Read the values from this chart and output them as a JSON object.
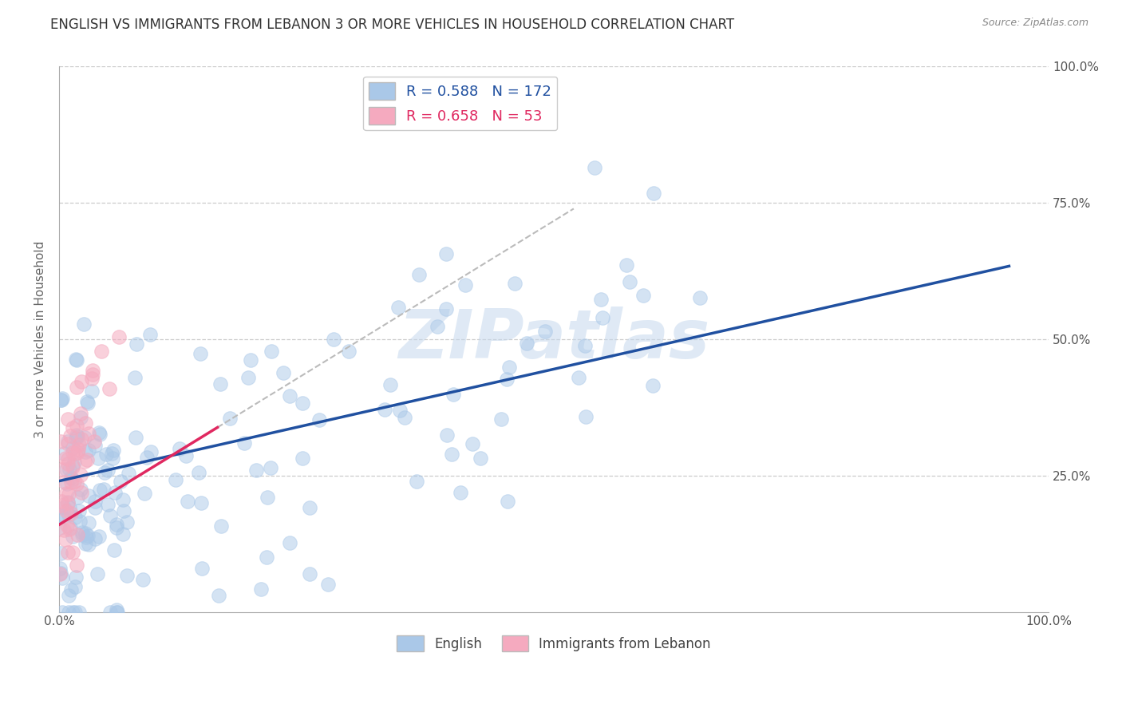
{
  "title": "ENGLISH VS IMMIGRANTS FROM LEBANON 3 OR MORE VEHICLES IN HOUSEHOLD CORRELATION CHART",
  "source": "Source: ZipAtlas.com",
  "ylabel": "3 or more Vehicles in Household",
  "blue_R": 0.588,
  "blue_N": 172,
  "pink_R": 0.658,
  "pink_N": 53,
  "blue_color": "#aac8e8",
  "pink_color": "#f5aabf",
  "blue_line_color": "#2050a0",
  "pink_line_color": "#e02860",
  "pink_dash_color": "#bbbbbb",
  "xlim": [
    0.0,
    1.0
  ],
  "ylim": [
    0.0,
    1.0
  ],
  "xtick_labels_ends": [
    "0.0%",
    "100.0%"
  ],
  "xtick_positions_ends": [
    0.0,
    1.0
  ],
  "ytick_labels": [
    "25.0%",
    "50.0%",
    "75.0%",
    "100.0%"
  ],
  "ytick_positions": [
    0.25,
    0.5,
    0.75,
    1.0
  ],
  "background_color": "#ffffff",
  "watermark": "ZIPatlas",
  "title_color": "#2c3e6b",
  "title_fontsize": 12,
  "grid_color": "#cccccc"
}
